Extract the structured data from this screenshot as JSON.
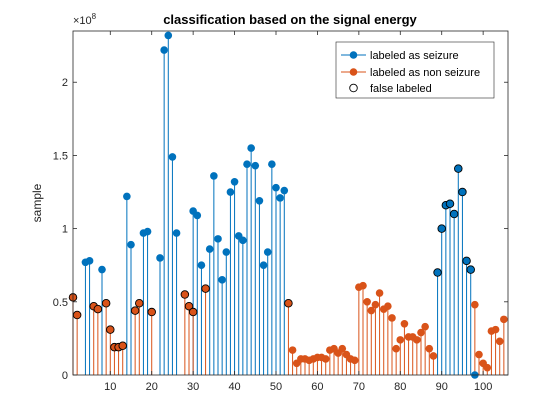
{
  "chart_data": {
    "type": "stem",
    "title": "classification based on the signal energy",
    "ylabel": "sample",
    "xlabel": "",
    "y_exponent_label": "×10",
    "y_exponent_power": "8",
    "y_scale": 100000000,
    "xlim": [
      1,
      106
    ],
    "ylim": [
      0,
      2.35
    ],
    "x_ticks": [
      10,
      20,
      30,
      40,
      50,
      60,
      70,
      80,
      90,
      100
    ],
    "x_tick_labels": [
      "10",
      "20",
      "30",
      "40",
      "50",
      "60",
      "70",
      "80",
      "90",
      "100"
    ],
    "y_ticks": [
      0,
      0.5,
      1,
      1.5,
      2
    ],
    "y_tick_labels": [
      "0",
      "0.5",
      "1",
      "1.5",
      "2"
    ],
    "grid": false,
    "legend_position": "top-right",
    "legend": {
      "seizure": "labeled as seizure",
      "non_seizure": "labeled as non seizure",
      "false": "false labeled"
    },
    "colors": {
      "seizure": "#0072BD",
      "non_seizure": "#D95319",
      "false_edge": "#000000"
    },
    "series": [
      {
        "name": "labeled as seizure",
        "color": "#0072BD",
        "x": [
          4,
          5,
          8,
          14,
          15,
          18,
          19,
          22,
          23,
          24,
          25,
          26,
          30,
          31,
          32,
          34,
          35,
          36,
          37,
          38,
          39,
          40,
          41,
          42,
          43,
          44,
          45,
          46,
          47,
          48,
          49,
          50,
          51,
          52,
          89,
          90,
          91,
          92,
          93,
          94,
          95,
          96,
          97,
          98
        ],
        "y": [
          0.77,
          0.78,
          0.72,
          1.22,
          0.89,
          0.97,
          0.98,
          0.8,
          2.22,
          2.32,
          1.49,
          0.97,
          1.12,
          1.09,
          0.75,
          0.86,
          1.36,
          0.93,
          0.65,
          0.84,
          1.25,
          1.32,
          0.95,
          0.92,
          1.44,
          1.55,
          1.43,
          1.19,
          0.75,
          0.84,
          1.44,
          1.28,
          1.21,
          1.26,
          0.7,
          1.0,
          1.16,
          1.17,
          1.1,
          1.41,
          1.25,
          0.78,
          0.72,
          0.0
        ],
        "false_labeled": [
          false,
          false,
          false,
          false,
          false,
          false,
          false,
          false,
          false,
          false,
          false,
          false,
          false,
          false,
          false,
          false,
          false,
          false,
          false,
          false,
          false,
          false,
          false,
          false,
          false,
          false,
          false,
          false,
          false,
          false,
          false,
          false,
          false,
          false,
          true,
          true,
          true,
          true,
          true,
          true,
          true,
          true,
          true,
          false
        ]
      },
      {
        "name": "labeled as non seizure",
        "color": "#D95319",
        "x": [
          1,
          2,
          6,
          7,
          9,
          10,
          11,
          12,
          13,
          16,
          17,
          20,
          28,
          29,
          30,
          33,
          53,
          54,
          55,
          56,
          57,
          58,
          59,
          60,
          61,
          62,
          63,
          64,
          65,
          66,
          67,
          68,
          69,
          70,
          71,
          72,
          73,
          74,
          75,
          76,
          77,
          78,
          79,
          80,
          81,
          82,
          83,
          84,
          85,
          86,
          87,
          88,
          98,
          99,
          100,
          101,
          102,
          103,
          104,
          105
        ],
        "y": [
          0.53,
          0.41,
          0.47,
          0.45,
          0.49,
          0.31,
          0.19,
          0.19,
          0.2,
          0.44,
          0.49,
          0.43,
          0.55,
          0.47,
          0.43,
          0.59,
          0.49,
          0.17,
          0.08,
          0.11,
          0.11,
          0.1,
          0.11,
          0.12,
          0.12,
          0.11,
          0.17,
          0.18,
          0.15,
          0.18,
          0.14,
          0.11,
          0.1,
          0.6,
          0.61,
          0.5,
          0.44,
          0.48,
          0.56,
          0.45,
          0.47,
          0.39,
          0.18,
          0.24,
          0.35,
          0.26,
          0.26,
          0.24,
          0.29,
          0.33,
          0.18,
          0.13,
          0.48,
          0.14,
          0.08,
          0.05,
          0.3,
          0.31,
          0.23,
          0.38
        ],
        "false_labeled": [
          true,
          true,
          true,
          true,
          true,
          true,
          true,
          true,
          true,
          true,
          true,
          true,
          true,
          true,
          true,
          true,
          true,
          false,
          false,
          false,
          false,
          false,
          false,
          false,
          false,
          false,
          false,
          false,
          false,
          false,
          false,
          false,
          false,
          false,
          false,
          false,
          false,
          false,
          false,
          false,
          false,
          false,
          false,
          false,
          false,
          false,
          false,
          false,
          false,
          false,
          false,
          false,
          false,
          false,
          false,
          false,
          false,
          false,
          false,
          false
        ]
      }
    ]
  }
}
